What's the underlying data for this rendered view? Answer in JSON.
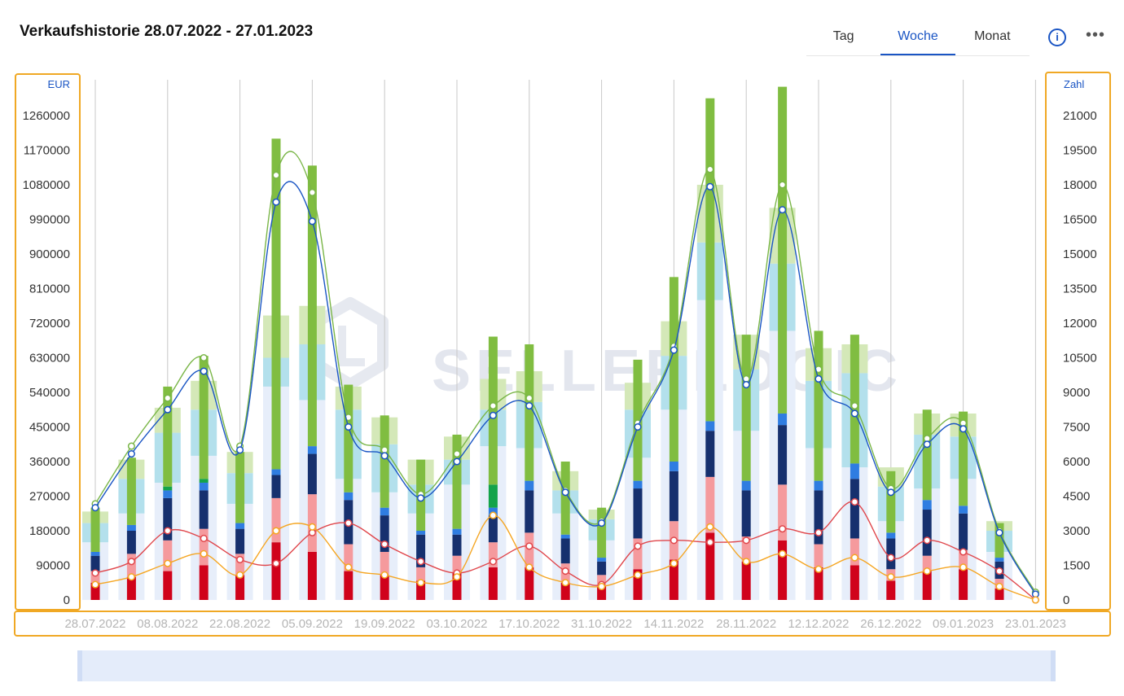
{
  "header": {
    "title": "Verkaufshistorie 28.07.2022 - 27.01.2023",
    "tabs": [
      {
        "label": "Tag",
        "active": false
      },
      {
        "label": "Woche",
        "active": true
      },
      {
        "label": "Monat",
        "active": false
      }
    ],
    "info_icon": "info-icon",
    "more_icon": "more-icon",
    "accent_color": "#1a55c4"
  },
  "watermark": "SELLERLOGIC",
  "chart_data": {
    "type": "bar",
    "left_axis": {
      "unit": "EUR",
      "min": 0,
      "max": 1260000,
      "ticks": [
        0,
        90000,
        180000,
        270000,
        360000,
        450000,
        540000,
        630000,
        720000,
        810000,
        900000,
        990000,
        1080000,
        1170000,
        1260000
      ]
    },
    "right_axis": {
      "unit": "Zahl",
      "min": 0,
      "max": 21000,
      "ticks": [
        0,
        1500,
        3000,
        4500,
        6000,
        7500,
        9000,
        10500,
        12000,
        13500,
        15000,
        16500,
        18000,
        19500,
        21000
      ]
    },
    "x_tick_labels": [
      "28.07.2022",
      "08.08.2022",
      "22.08.2022",
      "05.09.2022",
      "19.09.2022",
      "03.10.2022",
      "17.10.2022",
      "31.10.2022",
      "14.11.2022",
      "28.11.2022",
      "12.12.2022",
      "26.12.2022",
      "09.01.2023",
      "23.01.2023"
    ],
    "weeks": 27,
    "bars_wide": [
      {
        "pale": 150000,
        "light_blue": 50000,
        "light_green": 30000
      },
      {
        "pale": 225000,
        "light_blue": 90000,
        "light_green": 50000
      },
      {
        "pale": 305000,
        "light_blue": 130000,
        "light_green": 65000
      },
      {
        "pale": 375000,
        "light_blue": 120000,
        "light_green": 75000
      },
      {
        "pale": 250000,
        "light_blue": 80000,
        "light_green": 55000
      },
      {
        "pale": 555000,
        "light_blue": 75000,
        "light_green": 110000
      },
      {
        "pale": 520000,
        "light_blue": 145000,
        "light_green": 100000
      },
      {
        "pale": 315000,
        "light_blue": 180000,
        "light_green": 60000
      },
      {
        "pale": 280000,
        "light_blue": 125000,
        "light_green": 70000
      },
      {
        "pale": 225000,
        "light_blue": 75000,
        "light_green": 65000
      },
      {
        "pale": 300000,
        "light_blue": 65000,
        "light_green": 60000
      },
      {
        "pale": 400000,
        "light_blue": 95000,
        "light_green": 80000
      },
      {
        "pale": 395000,
        "light_blue": 120000,
        "light_green": 80000
      },
      {
        "pale": 225000,
        "light_blue": 60000,
        "light_green": 50000
      },
      {
        "pale": 155000,
        "light_blue": 55000,
        "light_green": 25000
      },
      {
        "pale": 370000,
        "light_blue": 125000,
        "light_green": 70000
      },
      {
        "pale": 495000,
        "light_blue": 140000,
        "light_green": 90000
      },
      {
        "pale": 780000,
        "light_blue": 150000,
        "light_green": 150000
      },
      {
        "pale": 440000,
        "light_blue": 160000,
        "light_green": 90000
      },
      {
        "pale": 700000,
        "light_blue": 175000,
        "light_green": 145000
      },
      {
        "pale": 395000,
        "light_blue": 175000,
        "light_green": 85000
      },
      {
        "pale": 345000,
        "light_blue": 245000,
        "light_green": 75000
      },
      {
        "pale": 205000,
        "light_blue": 90000,
        "light_green": 50000
      },
      {
        "pale": 290000,
        "light_blue": 140000,
        "light_green": 55000
      },
      {
        "pale": 315000,
        "light_blue": 110000,
        "light_green": 60000
      },
      {
        "pale": 125000,
        "light_blue": 55000,
        "light_green": 25000
      },
      {
        "pale": 0,
        "light_blue": 0,
        "light_green": 0
      }
    ],
    "bars_narrow": [
      {
        "red": 45000,
        "pink": 30000,
        "navy": 40000,
        "blue": 10000,
        "dark_green": 0,
        "green": 115000
      },
      {
        "red": 60000,
        "pink": 60000,
        "navy": 60000,
        "blue": 15000,
        "dark_green": 0,
        "green": 175000
      },
      {
        "red": 75000,
        "pink": 80000,
        "navy": 110000,
        "blue": 20000,
        "dark_green": 10000,
        "green": 260000
      },
      {
        "red": 90000,
        "pink": 95000,
        "navy": 100000,
        "blue": 20000,
        "dark_green": 10000,
        "green": 320000
      },
      {
        "red": 65000,
        "pink": 55000,
        "navy": 65000,
        "blue": 15000,
        "dark_green": 0,
        "green": 185000
      },
      {
        "red": 150000,
        "pink": 115000,
        "navy": 60000,
        "blue": 15000,
        "dark_green": 0,
        "green": 860000
      },
      {
        "red": 125000,
        "pink": 150000,
        "navy": 105000,
        "blue": 20000,
        "dark_green": 0,
        "green": 730000
      },
      {
        "red": 75000,
        "pink": 70000,
        "navy": 115000,
        "blue": 20000,
        "dark_green": 0,
        "green": 280000
      },
      {
        "red": 65000,
        "pink": 60000,
        "navy": 95000,
        "blue": 20000,
        "dark_green": 0,
        "green": 240000
      },
      {
        "red": 50000,
        "pink": 35000,
        "navy": 85000,
        "blue": 10000,
        "dark_green": 0,
        "green": 185000
      },
      {
        "red": 70000,
        "pink": 45000,
        "navy": 55000,
        "blue": 15000,
        "dark_green": 0,
        "green": 245000
      },
      {
        "red": 85000,
        "pink": 65000,
        "navy": 70000,
        "blue": 20000,
        "dark_green": 60000,
        "green": 385000
      },
      {
        "red": 85000,
        "pink": 90000,
        "navy": 110000,
        "blue": 25000,
        "dark_green": 0,
        "green": 355000
      },
      {
        "red": 45000,
        "pink": 50000,
        "navy": 65000,
        "blue": 10000,
        "dark_green": 0,
        "green": 190000
      },
      {
        "red": 35000,
        "pink": 30000,
        "navy": 35000,
        "blue": 10000,
        "dark_green": 0,
        "green": 130000
      },
      {
        "red": 80000,
        "pink": 80000,
        "navy": 130000,
        "blue": 20000,
        "dark_green": 0,
        "green": 315000
      },
      {
        "red": 105000,
        "pink": 100000,
        "navy": 130000,
        "blue": 25000,
        "dark_green": 0,
        "green": 480000
      },
      {
        "red": 175000,
        "pink": 145000,
        "navy": 120000,
        "blue": 25000,
        "dark_green": 0,
        "green": 840000
      },
      {
        "red": 100000,
        "pink": 65000,
        "navy": 120000,
        "blue": 25000,
        "dark_green": 0,
        "green": 380000
      },
      {
        "red": 155000,
        "pink": 145000,
        "navy": 155000,
        "blue": 30000,
        "dark_green": 0,
        "green": 850000
      },
      {
        "red": 85000,
        "pink": 60000,
        "navy": 140000,
        "blue": 25000,
        "dark_green": 0,
        "green": 390000
      },
      {
        "red": 90000,
        "pink": 70000,
        "navy": 155000,
        "blue": 40000,
        "dark_green": 0,
        "green": 335000
      },
      {
        "red": 50000,
        "pink": 30000,
        "navy": 80000,
        "blue": 15000,
        "dark_green": 0,
        "green": 160000
      },
      {
        "red": 75000,
        "pink": 40000,
        "navy": 120000,
        "blue": 25000,
        "dark_green": 0,
        "green": 235000
      },
      {
        "red": 80000,
        "pink": 50000,
        "navy": 95000,
        "blue": 20000,
        "dark_green": 0,
        "green": 245000
      },
      {
        "red": 30000,
        "pink": 25000,
        "navy": 45000,
        "blue": 10000,
        "dark_green": 0,
        "green": 90000
      },
      {
        "red": 0,
        "pink": 0,
        "navy": 0,
        "blue": 0,
        "dark_green": 0,
        "green": 0
      }
    ],
    "lines": [
      {
        "axis": "left",
        "color": "#7ab648",
        "values": [
          250000,
          400000,
          525000,
          630000,
          400000,
          1105000,
          1060000,
          475000,
          390000,
          275000,
          380000,
          505000,
          525000,
          285000,
          205000,
          460000,
          660000,
          1120000,
          575000,
          1080000,
          600000,
          505000,
          290000,
          420000,
          460000,
          180000,
          20000
        ]
      },
      {
        "axis": "left",
        "color": "#1a55c4",
        "values": [
          240000,
          380000,
          495000,
          595000,
          390000,
          1035000,
          985000,
          450000,
          375000,
          265000,
          360000,
          480000,
          505000,
          280000,
          200000,
          450000,
          650000,
          1075000,
          560000,
          1015000,
          575000,
          485000,
          280000,
          405000,
          445000,
          175000,
          15000
        ]
      },
      {
        "axis": "left",
        "color": "#e0474c",
        "values": [
          70000,
          100000,
          180000,
          160000,
          105000,
          95000,
          175000,
          200000,
          145000,
          100000,
          70000,
          100000,
          140000,
          75000,
          40000,
          140000,
          155000,
          150000,
          155000,
          185000,
          175000,
          255000,
          110000,
          155000,
          125000,
          75000,
          0
        ]
      },
      {
        "axis": "left",
        "color": "#f5a623",
        "values": [
          40000,
          60000,
          95000,
          120000,
          65000,
          180000,
          190000,
          85000,
          65000,
          45000,
          60000,
          220000,
          85000,
          45000,
          35000,
          65000,
          95000,
          190000,
          100000,
          120000,
          80000,
          110000,
          60000,
          75000,
          85000,
          35000,
          0
        ]
      }
    ]
  }
}
